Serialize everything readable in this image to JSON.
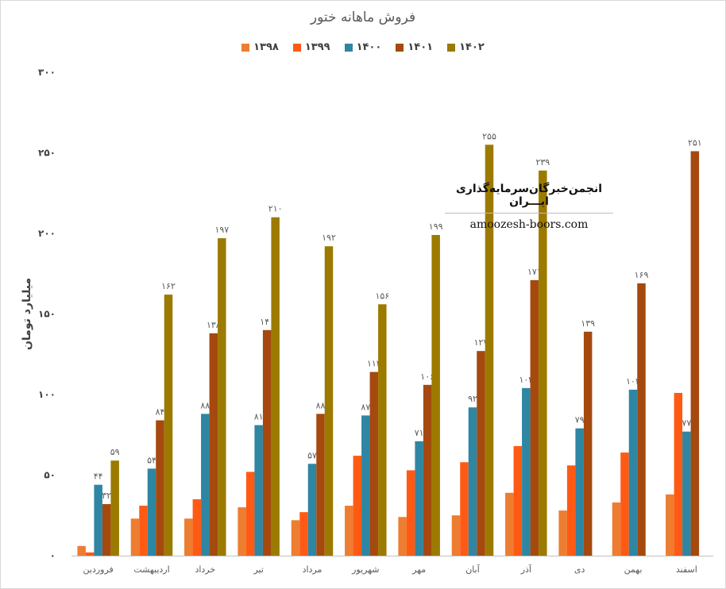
{
  "chart_data": {
    "type": "bar",
    "title": "فروش ماهانه ختور",
    "xlabel": "",
    "ylabel": "میلیارد تومان",
    "ylim": [
      0,
      300
    ],
    "yticks": [
      0,
      50,
      100,
      150,
      200,
      250,
      300
    ],
    "ytick_labels": [
      "۰",
      "۵۰",
      "۱۰۰",
      "۱۵۰",
      "۲۰۰",
      "۲۵۰",
      "۳۰۰"
    ],
    "grid": false,
    "legend_position": "top",
    "categories": [
      "فروردین",
      "اردیبهشت",
      "خرداد",
      "تیر",
      "مرداد",
      "شهریور",
      "مهر",
      "آبان",
      "آذر",
      "دی",
      "بهمن",
      "اسفند"
    ],
    "series": [
      {
        "name": "۱۳۹۸",
        "color": "#ed7d31",
        "values": [
          6,
          23,
          23,
          30,
          22,
          31,
          24,
          25,
          39,
          28,
          33,
          38
        ],
        "labels": []
      },
      {
        "name": "۱۳۹۹",
        "color": "#ff5a14",
        "values": [
          2,
          31,
          35,
          52,
          27,
          62,
          53,
          58,
          68,
          56,
          64,
          101
        ],
        "labels": []
      },
      {
        "name": "۱۴۰۰",
        "color": "#2e86a3",
        "values": [
          44,
          54,
          88,
          81,
          57,
          87,
          71,
          92,
          104,
          79,
          103,
          77
        ],
        "labels": [
          "۴۴",
          "۵۴",
          "۸۸",
          "۸۱",
          "۵۷",
          "۸۷",
          "۷۱",
          "۹۲",
          "۱۰۴",
          "۷۹",
          "۱۰۳",
          "۷۷"
        ]
      },
      {
        "name": "۱۴۰۱",
        "color": "#a5490f",
        "values": [
          32,
          84,
          138,
          140,
          88,
          114,
          106,
          127,
          171,
          139,
          169,
          251
        ],
        "labels": [
          "۳۲",
          "۸۴",
          "۱۳۸",
          "۱۴۰",
          "۸۸",
          "۱۱۴",
          "۱۰۶",
          "۱۲۷",
          "۱۷۱",
          "۱۳۹",
          "۱۶۹",
          "۲۵۱"
        ]
      },
      {
        "name": "۱۴۰۲",
        "color": "#9c7a00",
        "values": [
          59,
          162,
          197,
          210,
          192,
          156,
          199,
          255,
          239,
          null,
          null,
          null
        ],
        "labels": [
          "۵۹",
          "۱۶۲",
          "۱۹۷",
          "۲۱۰",
          "۱۹۲",
          "۱۵۶",
          "۱۹۹",
          "۲۵۵",
          "۲۳۹",
          "",
          "",
          ""
        ]
      }
    ]
  },
  "watermark": {
    "title": "انجمن‌خبرگان‌سرمایه‌گذاری ایـــران",
    "url": "amoozesh-boors.com"
  }
}
